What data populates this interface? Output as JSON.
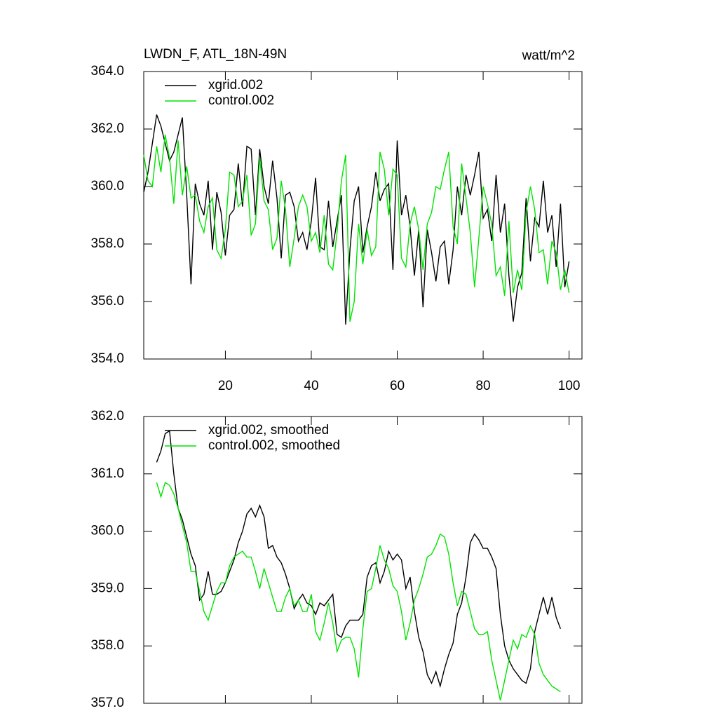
{
  "chart_data": [
    {
      "type": "line",
      "title": "LWDN_F, ATL_18N-49N",
      "units": "watt/m^2",
      "x": [
        1,
        2,
        3,
        4,
        5,
        6,
        7,
        8,
        9,
        10,
        11,
        12,
        13,
        14,
        15,
        16,
        17,
        18,
        19,
        20,
        21,
        22,
        23,
        24,
        25,
        26,
        27,
        28,
        29,
        30,
        31,
        32,
        33,
        34,
        35,
        36,
        37,
        38,
        39,
        40,
        41,
        42,
        43,
        44,
        45,
        46,
        47,
        48,
        49,
        50,
        51,
        52,
        53,
        54,
        55,
        56,
        57,
        58,
        59,
        60,
        61,
        62,
        63,
        64,
        65,
        66,
        67,
        68,
        69,
        70,
        71,
        72,
        73,
        74,
        75,
        76,
        77,
        78,
        79,
        80,
        81,
        82,
        83,
        84,
        85,
        86,
        87,
        88,
        89,
        90,
        91,
        92,
        93,
        94,
        95,
        96,
        97,
        98,
        99,
        100
      ],
      "series": [
        {
          "name": "xgrid.002",
          "color": "#000000",
          "values": [
            359.8,
            360.5,
            361.5,
            362.5,
            362.1,
            361.5,
            360.9,
            361.2,
            361.8,
            362.4,
            359.7,
            356.6,
            360.1,
            359.4,
            359.0,
            360.2,
            357.8,
            359.8,
            359.1,
            357.6,
            359.0,
            359.2,
            360.8,
            359.3,
            361.4,
            361.3,
            359.0,
            361.3,
            360.0,
            359.4,
            360.9,
            359.6,
            357.5,
            359.7,
            359.8,
            359.3,
            358.1,
            358.4,
            357.8,
            358.8,
            360.3,
            357.9,
            357.8,
            359.5,
            357.9,
            358.8,
            359.7,
            355.2,
            357.8,
            359.5,
            360.0,
            357.7,
            358.6,
            359.3,
            360.5,
            359.5,
            359.9,
            360.1,
            357.1,
            361.6,
            359.0,
            359.7,
            358.6,
            356.9,
            358.5,
            355.8,
            358.5,
            357.7,
            356.7,
            357.9,
            358.1,
            356.6,
            357.8,
            360.0,
            359.0,
            360.4,
            359.7,
            360.4,
            361.2,
            358.9,
            359.2,
            358.1,
            360.4,
            358.4,
            359.4,
            356.9,
            355.3,
            356.5,
            357.0,
            359.6,
            357.4,
            358.9,
            358.6,
            360.2,
            358.4,
            359.0,
            357.2,
            359.4,
            356.5,
            357.4
          ]
        },
        {
          "name": "control.002",
          "color": "#00e400",
          "values": [
            361.1,
            360.2,
            360.0,
            361.4,
            360.5,
            361.8,
            361.0,
            359.4,
            361.6,
            359.7,
            360.7,
            359.6,
            359.7,
            358.8,
            358.4,
            359.3,
            359.6,
            357.8,
            357.5,
            358.5,
            360.5,
            360.4,
            359.3,
            359.5,
            360.4,
            358.3,
            358.7,
            361.0,
            359.5,
            359.2,
            357.8,
            358.2,
            360.2,
            359.2,
            357.2,
            358.2,
            359.3,
            359.7,
            359.3,
            358.1,
            358.4,
            357.7,
            359.0,
            357.3,
            357.1,
            358.4,
            360.2,
            361.1,
            355.3,
            356.0,
            358.7,
            357.3,
            358.5,
            357.6,
            357.9,
            361.2,
            360.6,
            359.0,
            360.6,
            360.4,
            357.5,
            357.2,
            358.7,
            359.3,
            358.5,
            357.1,
            358.7,
            359.1,
            360.0,
            359.9,
            360.6,
            361.2,
            358.6,
            358.0,
            360.8,
            359.6,
            358.4,
            356.5,
            358.2,
            360.0,
            359.4,
            358.7,
            356.9,
            357.2,
            356.2,
            358.8,
            356.3,
            357.1,
            356.4,
            359.1,
            360.0,
            359.2,
            357.7,
            357.8,
            356.6,
            358.1,
            357.7,
            356.4,
            357.1,
            356.3
          ]
        }
      ],
      "xlim": [
        1,
        103
      ],
      "xticks": [
        20,
        40,
        60,
        80,
        100
      ],
      "ylim": [
        354,
        364
      ],
      "yticks": [
        {
          "value": 354,
          "label": "354.0"
        },
        {
          "value": 356,
          "label": "356.0"
        },
        {
          "value": 358,
          "label": "358.0"
        },
        {
          "value": 360,
          "label": "360.0"
        },
        {
          "value": 362,
          "label": "362.0"
        },
        {
          "value": 364,
          "label": "364.0"
        }
      ],
      "grid": false,
      "legend": "upper-left"
    },
    {
      "type": "line",
      "x": [
        1,
        2,
        3,
        4,
        5,
        6,
        7,
        8,
        9,
        10,
        11,
        12,
        13,
        14,
        15,
        16,
        17,
        18,
        19,
        20,
        21,
        22,
        23,
        24,
        25,
        26,
        27,
        28,
        29,
        30,
        31,
        32,
        33,
        34,
        35,
        36,
        37,
        38,
        39,
        40,
        41,
        42,
        43,
        44,
        45,
        46,
        47,
        48,
        49,
        50,
        51,
        52,
        53,
        54,
        55,
        56,
        57,
        58,
        59,
        60,
        61,
        62,
        63,
        64,
        65,
        66,
        67,
        68,
        69,
        70,
        71,
        72,
        73,
        74,
        75,
        76,
        77,
        78,
        79,
        80,
        81,
        82,
        83,
        84,
        85,
        86,
        87,
        88,
        89,
        90,
        91,
        92,
        93,
        94,
        95,
        96,
        97,
        98,
        99,
        100
      ],
      "series": [
        {
          "name": "xgrid.002, smoothed",
          "color": "#000000",
          "values": [
            null,
            null,
            null,
            361.2,
            361.4,
            361.7,
            361.75,
            361.0,
            360.4,
            360.2,
            359.9,
            359.6,
            359.4,
            358.8,
            358.9,
            359.3,
            358.9,
            358.9,
            358.95,
            359.1,
            359.3,
            359.5,
            359.8,
            360.0,
            360.3,
            360.4,
            360.25,
            360.45,
            360.25,
            359.7,
            359.75,
            359.55,
            359.45,
            359.25,
            359.0,
            358.65,
            358.8,
            358.9,
            358.75,
            358.7,
            358.55,
            358.75,
            358.7,
            358.8,
            358.9,
            358.2,
            358.15,
            358.35,
            358.45,
            358.45,
            358.45,
            358.55,
            359.2,
            359.4,
            359.45,
            359.1,
            359.3,
            359.65,
            359.5,
            359.6,
            359.5,
            359.0,
            359.2,
            358.6,
            358.15,
            357.9,
            357.5,
            357.35,
            357.55,
            357.3,
            357.6,
            357.85,
            358.05,
            358.55,
            358.75,
            359.2,
            359.8,
            359.95,
            359.85,
            359.7,
            359.7,
            359.55,
            359.35,
            358.55,
            358.0,
            357.75,
            357.6,
            357.5,
            357.4,
            357.35,
            357.6,
            358.25,
            358.55,
            358.85,
            358.55,
            358.85,
            358.5,
            358.3,
            null,
            null
          ]
        },
        {
          "name": "control.002, smoothed",
          "color": "#00e400",
          "values": [
            null,
            null,
            null,
            360.85,
            360.6,
            360.85,
            360.8,
            360.65,
            360.4,
            360.1,
            359.8,
            359.3,
            359.3,
            358.95,
            358.6,
            358.45,
            358.7,
            358.95,
            359.1,
            359.1,
            359.4,
            359.55,
            359.6,
            359.65,
            359.55,
            359.55,
            359.3,
            359.0,
            359.35,
            359.1,
            358.85,
            358.6,
            358.6,
            358.85,
            359.0,
            358.7,
            358.8,
            358.6,
            358.6,
            358.9,
            358.25,
            358.1,
            358.4,
            358.75,
            358.4,
            357.9,
            358.1,
            358.15,
            358.15,
            357.95,
            357.45,
            358.3,
            358.95,
            359.0,
            359.35,
            359.75,
            359.5,
            359.35,
            359.05,
            358.95,
            358.6,
            358.1,
            358.4,
            358.8,
            359.0,
            359.25,
            359.55,
            359.6,
            359.75,
            359.95,
            359.9,
            359.6,
            359.1,
            358.7,
            358.95,
            358.9,
            358.6,
            358.3,
            358.2,
            358.2,
            358.25,
            357.75,
            357.4,
            357.05,
            357.4,
            357.75,
            358.1,
            357.95,
            358.2,
            358.15,
            358.35,
            358.2,
            357.7,
            357.5,
            357.4,
            357.3,
            357.25,
            357.2,
            null,
            null
          ]
        }
      ],
      "xlim": [
        1,
        103
      ],
      "xticks": [
        20,
        40,
        60,
        80,
        100
      ],
      "ylim": [
        357,
        362
      ],
      "yticks": [
        {
          "value": 357,
          "label": "357.0"
        },
        {
          "value": 358,
          "label": "358.0"
        },
        {
          "value": 359,
          "label": "359.0"
        },
        {
          "value": 360,
          "label": "360.0"
        },
        {
          "value": 361,
          "label": "361.0"
        },
        {
          "value": 362,
          "label": "362.0"
        }
      ],
      "grid": false,
      "legend": "upper-left"
    }
  ]
}
